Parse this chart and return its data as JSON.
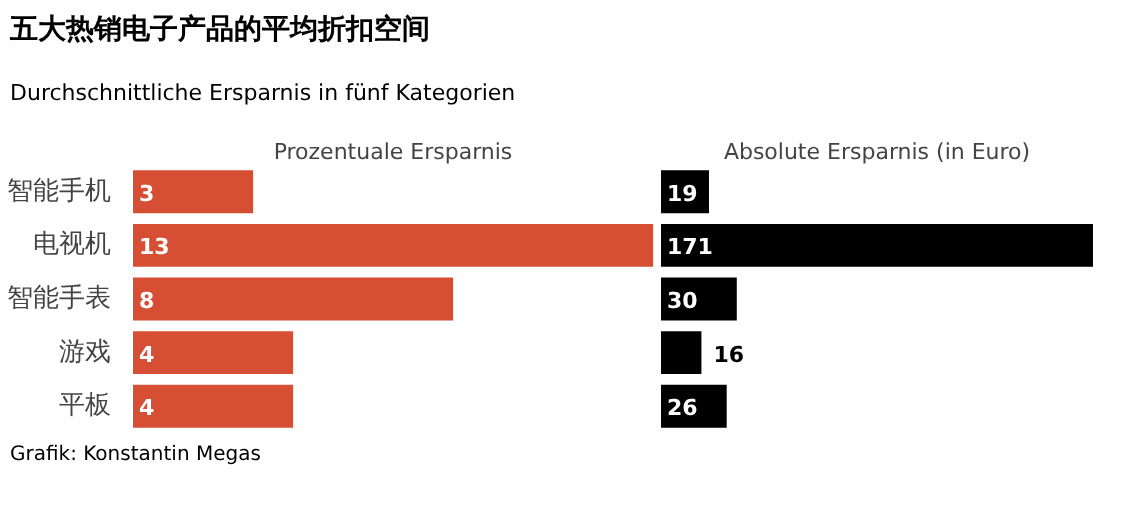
{
  "chart_data": [
    {
      "type": "bar",
      "orientation": "horizontal",
      "title": "五大热销电子产品的平均折扣空间",
      "subtitle": "Durchschnittliche Ersparnis in fünf Kategorien",
      "xlabel": "Prozentuale Ersparnis",
      "categories": [
        "智能手机",
        "电视机",
        "智能手表",
        "游戏",
        "平板"
      ],
      "values": [
        3,
        13,
        8,
        4,
        4
      ],
      "color": "#d64f34",
      "data_labels": true,
      "tick_labels": "y",
      "grid": false
    },
    {
      "type": "bar",
      "orientation": "horizontal",
      "xlabel": "Absolute Ersparnis (in Euro)",
      "categories": [
        null,
        null,
        null,
        null,
        null
      ],
      "values": [
        19,
        171,
        30,
        16,
        26
      ],
      "color": "#000000",
      "data_labels": true,
      "tick_labels": false,
      "grid": false,
      "annotations": [
        "Grafik: Konstantin Megas"
      ]
    }
  ]
}
